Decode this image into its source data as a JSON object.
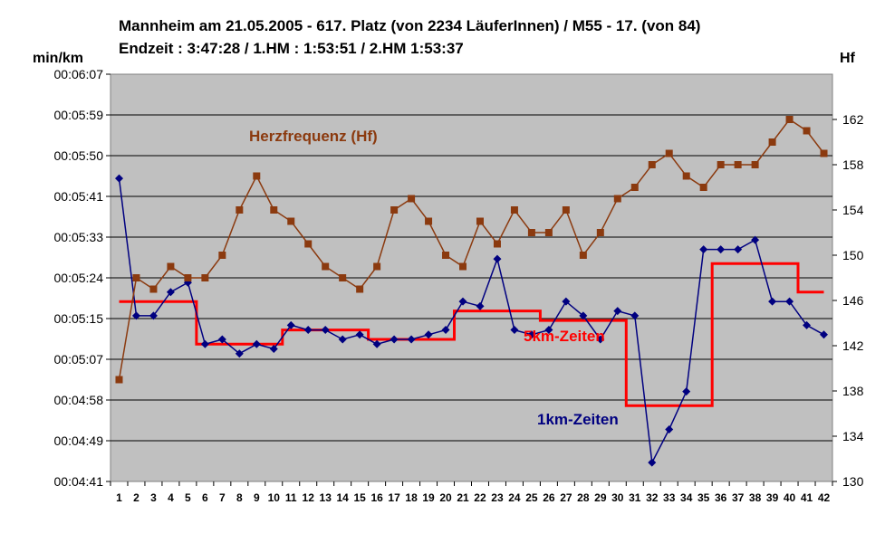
{
  "chart_data": {
    "type": "line",
    "title": "Mannheim am 21.05.2005 - 617. Platz (von 2234 LäuferInnen) / M55 - 17. (von 84)",
    "subtitle": "Endzeit : 3:47:28  / 1.HM : 1:53:51  / 2.HM  1:53:37",
    "ylabel_left": "min/km",
    "ylabel_right": "Hf",
    "x": [
      1,
      2,
      3,
      4,
      5,
      6,
      7,
      8,
      9,
      10,
      11,
      12,
      13,
      14,
      15,
      16,
      17,
      18,
      19,
      20,
      21,
      22,
      23,
      24,
      25,
      26,
      27,
      28,
      29,
      30,
      31,
      32,
      33,
      34,
      35,
      36,
      37,
      38,
      39,
      40,
      41,
      42
    ],
    "y_left_ticks": [
      "00:04:41",
      "00:04:49",
      "00:04:58",
      "00:05:07",
      "00:05:15",
      "00:05:24",
      "00:05:33",
      "00:05:41",
      "00:05:50",
      "00:05:59",
      "00:06:07"
    ],
    "ylim_left_seconds": [
      281,
      367
    ],
    "y_right_ticks": [
      130,
      134,
      138,
      142,
      146,
      150,
      154,
      158,
      162
    ],
    "ylim_right": [
      130,
      166
    ],
    "grid": true,
    "series": [
      {
        "name": "Herzfrequenz (Hf)",
        "axis": "right",
        "color": "#8B3A0F",
        "marker": "square",
        "values": [
          139,
          148,
          147,
          149,
          148,
          148,
          150,
          154,
          157,
          154,
          153,
          151,
          149,
          148,
          147,
          149,
          154,
          155,
          153,
          150,
          149,
          153,
          151,
          154,
          152,
          152,
          154,
          150,
          152,
          155,
          156,
          158,
          159,
          157,
          156,
          158,
          158,
          158,
          160,
          162,
          161,
          159
        ]
      },
      {
        "name": "1km-Zeiten",
        "axis": "left",
        "color": "#000080",
        "marker": "diamond",
        "values_seconds": [
          345,
          316,
          316,
          321,
          323,
          310,
          311,
          308,
          310,
          309,
          314,
          313,
          313,
          311,
          312,
          310,
          311,
          311,
          312,
          313,
          319,
          318,
          328,
          313,
          312,
          313,
          319,
          316,
          311,
          317,
          316,
          285,
          292,
          300,
          330,
          330,
          330,
          332,
          319,
          319,
          314,
          312
        ]
      },
      {
        "name": "5km-Zeiten",
        "axis": "left",
        "color": "#FF0000",
        "marker": "none",
        "step_values_seconds": [
          319,
          319,
          319,
          319,
          319,
          310,
          310,
          310,
          310,
          310,
          313,
          313,
          313,
          313,
          313,
          311,
          311,
          311,
          311,
          311,
          317,
          317,
          317,
          317,
          317,
          315,
          315,
          315,
          315,
          315,
          297,
          297,
          297,
          297,
          297,
          327,
          327,
          327,
          327,
          327,
          321,
          321
        ]
      }
    ]
  }
}
